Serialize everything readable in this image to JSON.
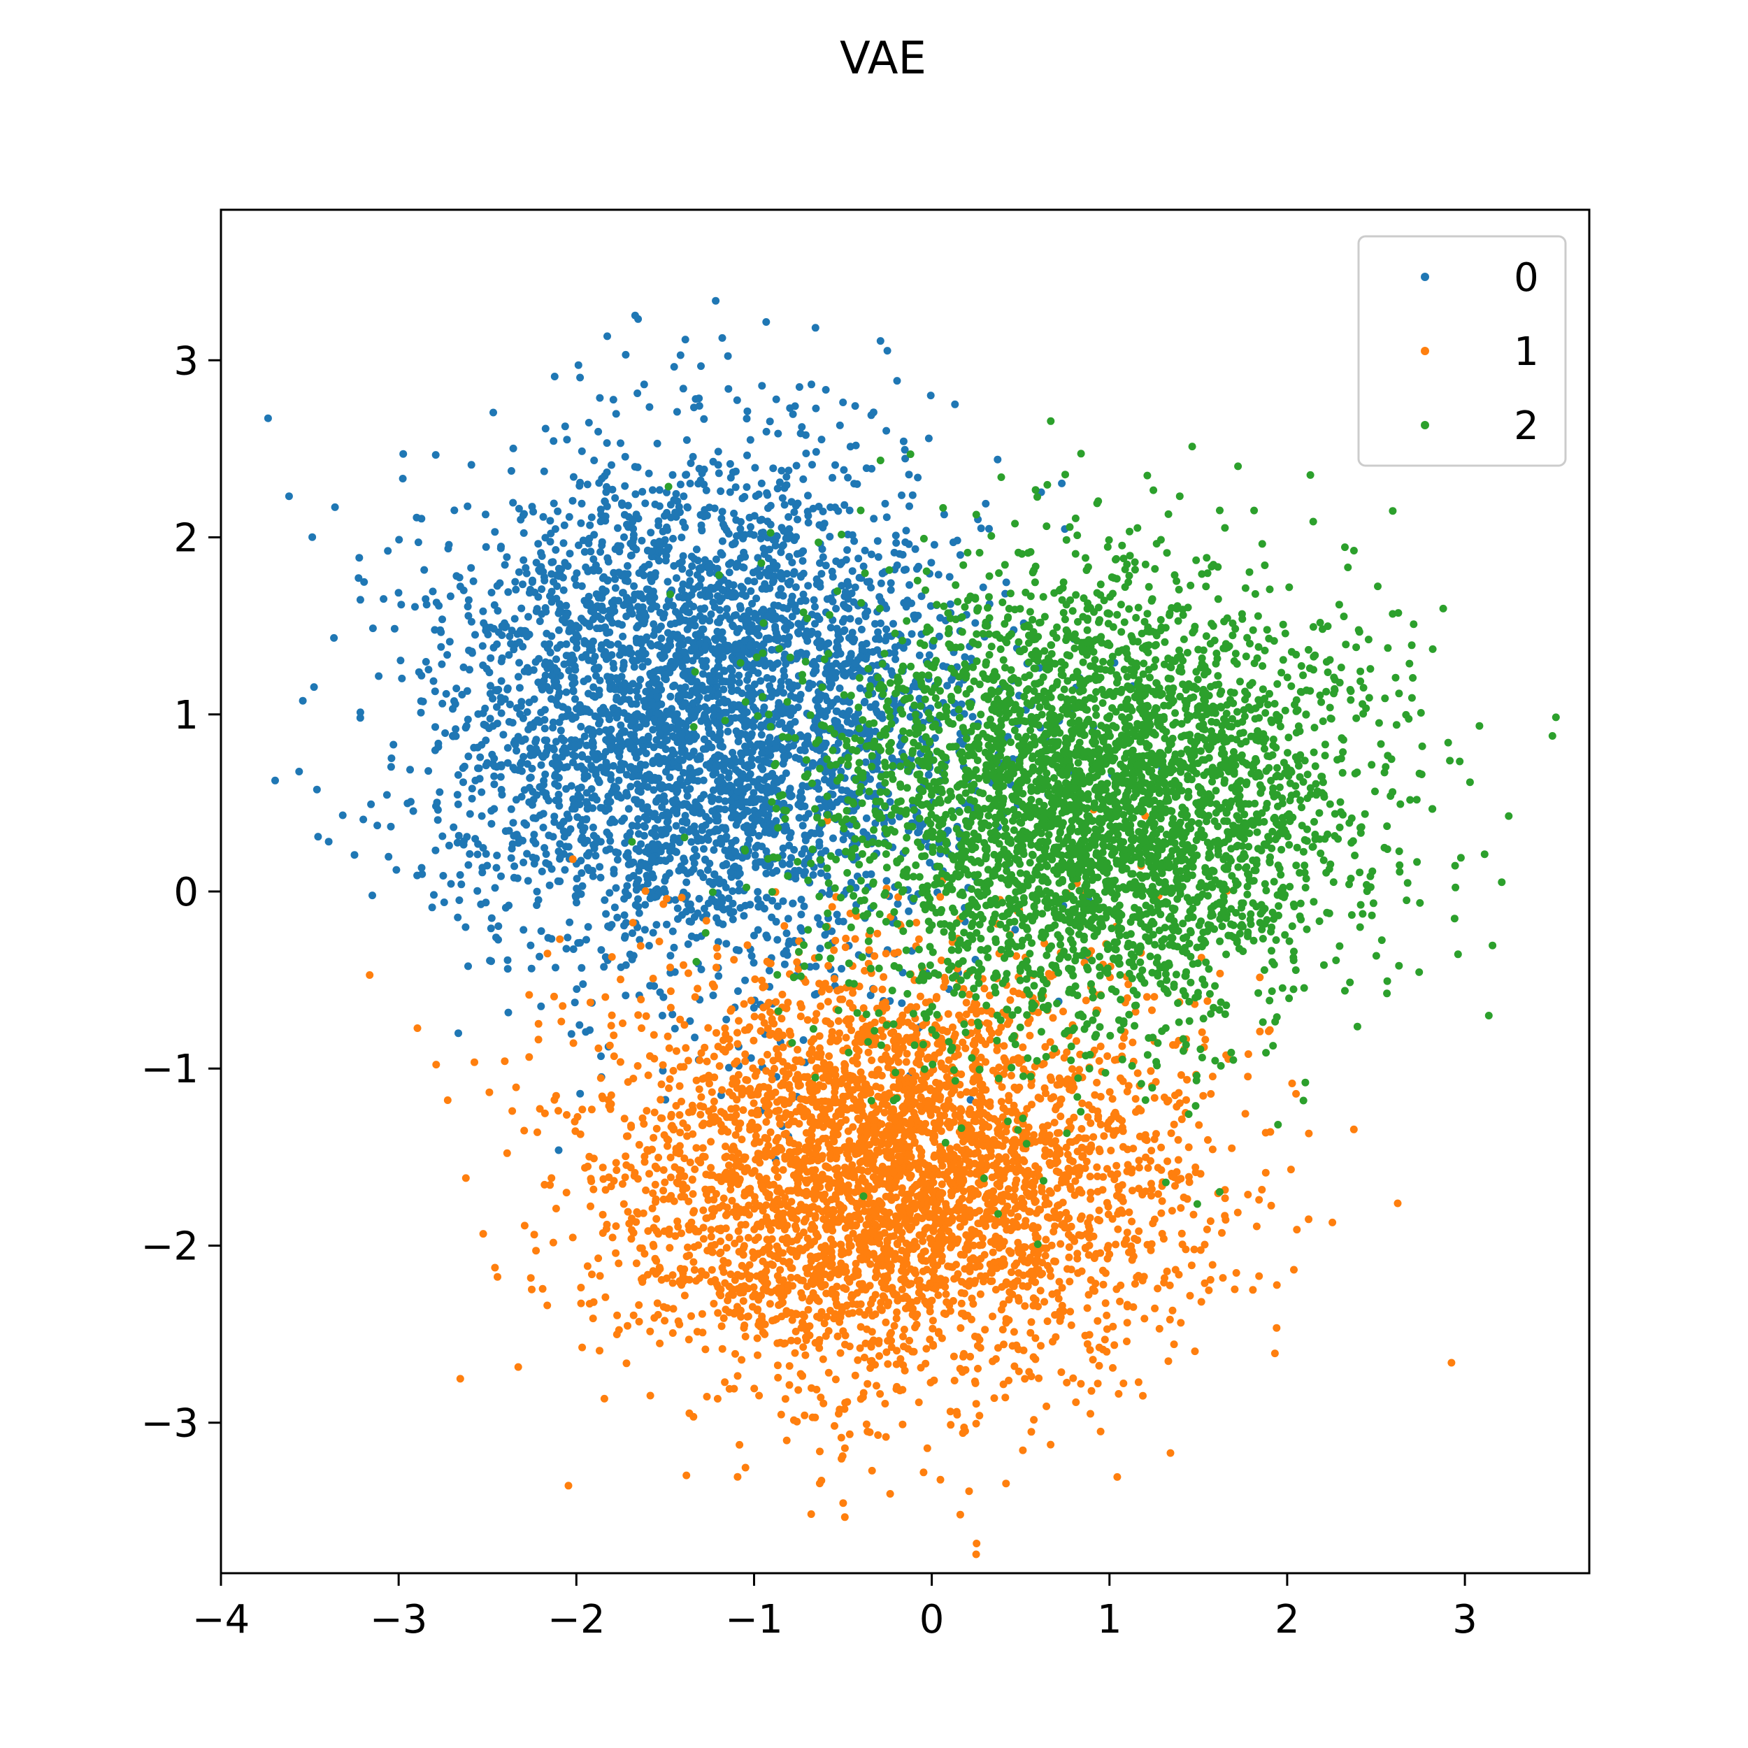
{
  "chart_data": {
    "type": "scatter",
    "title": "VAE",
    "xlabel": "",
    "ylabel": "",
    "xlim": [
      -4,
      3.7
    ],
    "ylim": [
      -3.85,
      3.85
    ],
    "xticks": [
      -4,
      -3,
      -2,
      -1,
      0,
      1,
      2,
      3
    ],
    "yticks": [
      -3,
      -2,
      -1,
      0,
      1,
      2,
      3
    ],
    "xtick_labels": [
      "−4",
      "−3",
      "−2",
      "−1",
      "0",
      "1",
      "2",
      "3"
    ],
    "ytick_labels": [
      "−3",
      "−2",
      "−1",
      "0",
      "1",
      "2",
      "3"
    ],
    "grid": false,
    "legend": {
      "position": "top-right"
    },
    "series": [
      {
        "name": "0",
        "color": "#1f77b4",
        "center": [
          -1.3,
          1.0
        ],
        "spread": [
          0.75,
          0.72
        ],
        "count": 4000
      },
      {
        "name": "1",
        "color": "#ff7f0e",
        "center": [
          -0.2,
          -1.6
        ],
        "spread": [
          0.8,
          0.6
        ],
        "count": 4000
      },
      {
        "name": "2",
        "color": "#2ca02c",
        "center": [
          0.9,
          0.5
        ],
        "spread": [
          0.75,
          0.65
        ],
        "count": 4000
      }
    ]
  }
}
